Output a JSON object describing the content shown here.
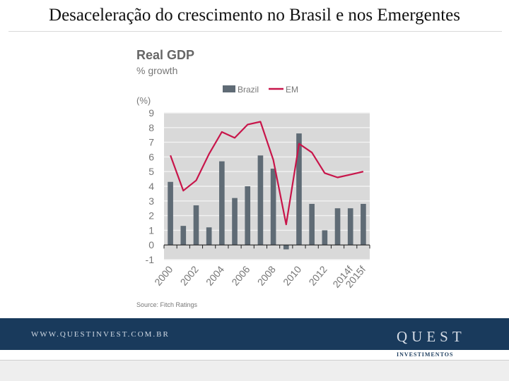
{
  "slide": {
    "title": "Desaceleração do crescimento no Brasil e nos Emergentes"
  },
  "footer": {
    "url": "WWW.QUESTINVEST.COM.BR",
    "brand": "QUEST",
    "brand_sub": "INVESTIMENTOS",
    "band_color": "#193a5c"
  },
  "chart_data": {
    "type": "bar",
    "title": "Real GDP",
    "subtitle": "% growth",
    "ylabel": "(%)",
    "xlabel": "",
    "source": "Source: Fitch Ratings",
    "ylim": [
      -1,
      9
    ],
    "yticks": [
      -1,
      0,
      1,
      2,
      3,
      4,
      5,
      6,
      7,
      8,
      9
    ],
    "grid": true,
    "legend_position": "top-right",
    "categories": [
      "2000",
      "2001",
      "2002",
      "2003",
      "2004",
      "2005",
      "2006",
      "2007",
      "2008",
      "2009",
      "2010",
      "2011",
      "2012",
      "2013",
      "2014f",
      "2015f"
    ],
    "xtick_labels": [
      "2000",
      "2002",
      "2004",
      "2006",
      "2008",
      "2010",
      "2012",
      "2014f",
      "2015f"
    ],
    "series": [
      {
        "name": "Brazil",
        "type": "bar",
        "color": "#5f6b75",
        "values": [
          4.3,
          1.3,
          2.7,
          1.2,
          5.7,
          3.2,
          4.0,
          6.1,
          5.2,
          -0.3,
          7.6,
          2.8,
          1.0,
          2.5,
          2.5,
          2.8
        ]
      },
      {
        "name": "EM",
        "type": "line",
        "color": "#c8154a",
        "values": [
          6.1,
          3.7,
          4.4,
          6.2,
          7.7,
          7.3,
          8.2,
          8.4,
          5.8,
          1.4,
          6.9,
          6.3,
          4.9,
          4.6,
          4.8,
          5.0
        ]
      }
    ]
  }
}
